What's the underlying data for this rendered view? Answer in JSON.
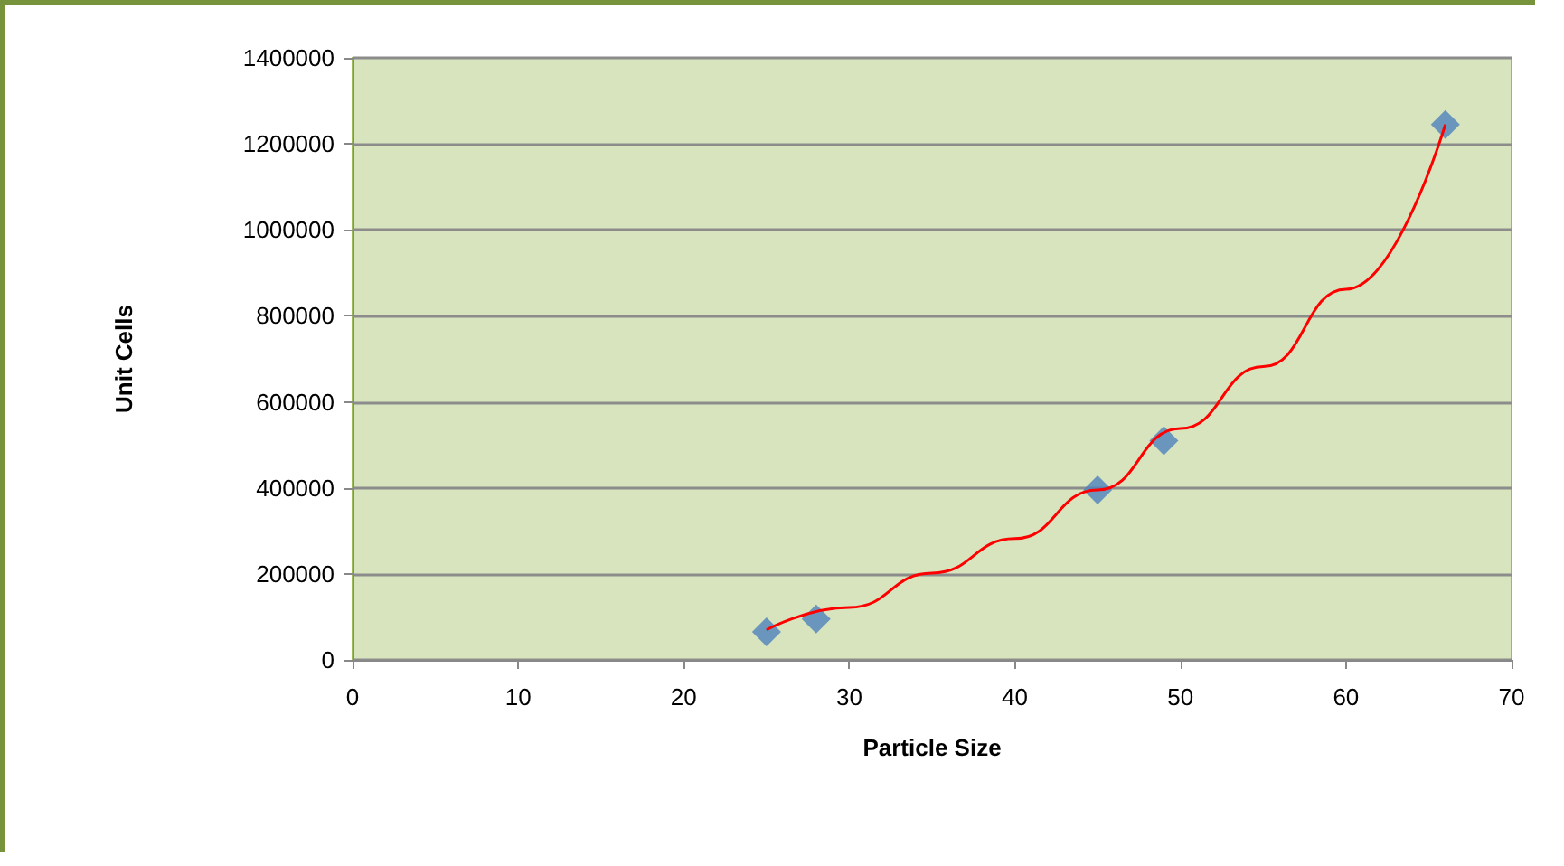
{
  "chart_data": {
    "type": "scatter",
    "xlabel": "Particle Size",
    "ylabel": "Unit Cells",
    "xlim": [
      0,
      70
    ],
    "xticks": [
      0,
      10,
      20,
      30,
      40,
      50,
      60,
      70
    ],
    "ylim": [
      0,
      1400000
    ],
    "yticks": [
      0,
      200000,
      400000,
      600000,
      800000,
      1000000,
      1200000,
      1400000
    ],
    "grid": "y",
    "marker": "diamond",
    "series": [
      {
        "color": "#4f81bd",
        "x": [
          25,
          28,
          45,
          49,
          66
        ],
        "values": [
          65000,
          95000,
          395000,
          510000,
          1245000
        ]
      },
      {
        "type": "line",
        "color": "#ff0000",
        "marker": "none",
        "line_style": "solid",
        "x": [
          25,
          30,
          35,
          40,
          45,
          50,
          55,
          60,
          66
        ],
        "values": [
          70000,
          122000,
          202000,
          282000,
          395000,
          538000,
          682000,
          862000,
          1245000
        ]
      }
    ]
  }
}
